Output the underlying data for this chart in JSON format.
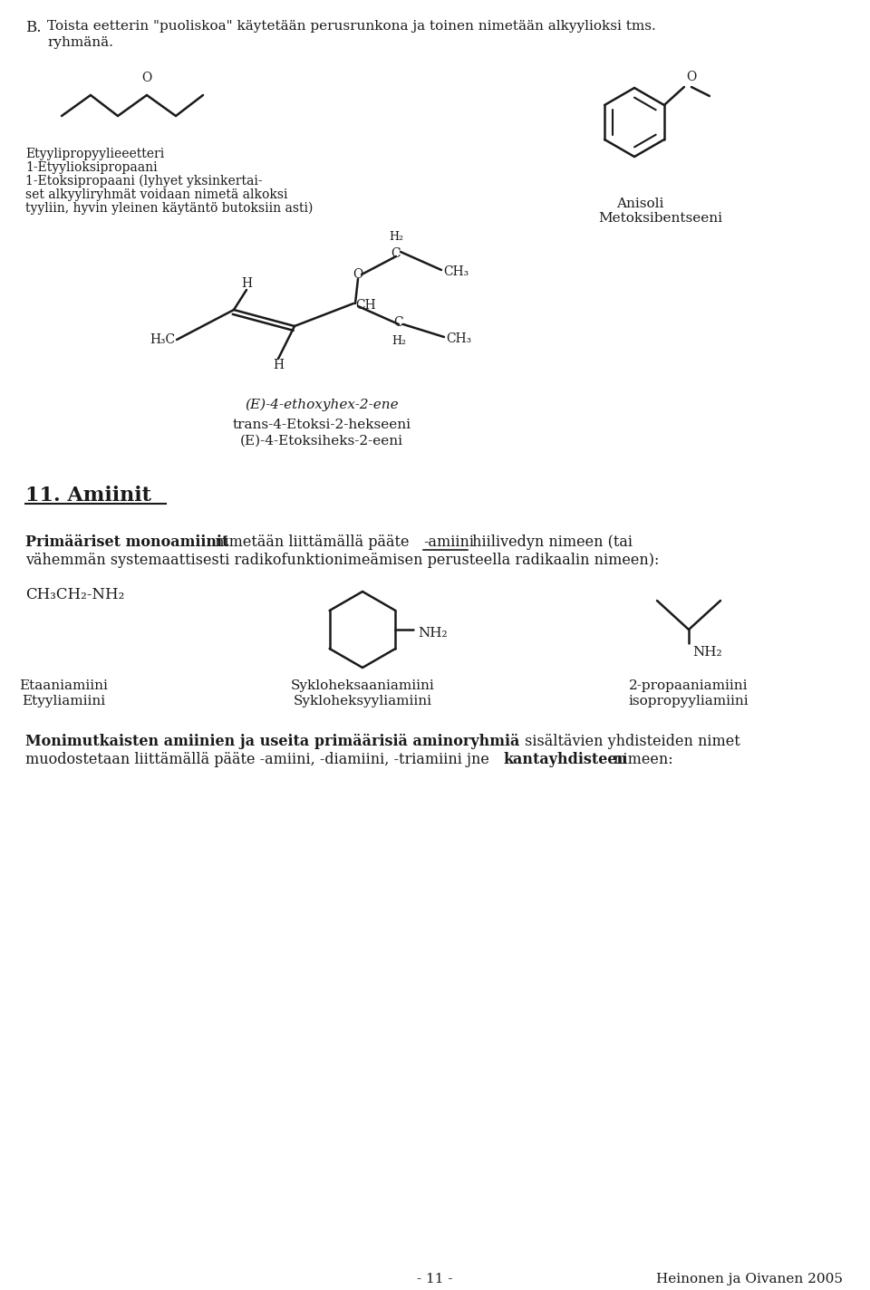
{
  "bg_color": "#ffffff",
  "text_color": "#1a1a1a",
  "page_width": 9.6,
  "page_height": 14.24,
  "section_B_line1": "B.  Toista eetterin \"puoliskoa\" käytetään perusrunkona ja toinen nimetään alkyylioksi tms.",
  "section_B_line2": "     ryhmänä.",
  "ether1_label_lines": [
    "Etyylipropyylieeetteri",
    "1-Etyylioksipropaani",
    "1-Etoksipropaani (lyhyet yksinkertai-",
    "set alkyyliryhmät voidaan nimetä alkoksi",
    "tyyliin, hyvin yleinen käytäntö butoksiin asti)"
  ],
  "anisoli_labels": [
    "Anisoli",
    "Metoksibentseeni"
  ],
  "compound_name1": "(E)-4-ethoxyhex-2-ene",
  "compound_name2": "trans-4-Etoksi-2-hekseeni",
  "compound_name3": "(E)-4-Etoksiheks-2-eeni",
  "section11_title": "11. Amiinit",
  "etaani_label1": "Etaaniamiini",
  "etaani_label2": "Etyyliamiini",
  "syklo_label1": "Sykloheksaaniamiini",
  "syklo_label2": "Sykloheksyyliamiini",
  "propa_label1": "2-propaaniamiini",
  "propa_label2": "isopropyyliamiini",
  "footer_left": "- 11 -",
  "footer_right": "Heinonen ja Oivanen 2005"
}
